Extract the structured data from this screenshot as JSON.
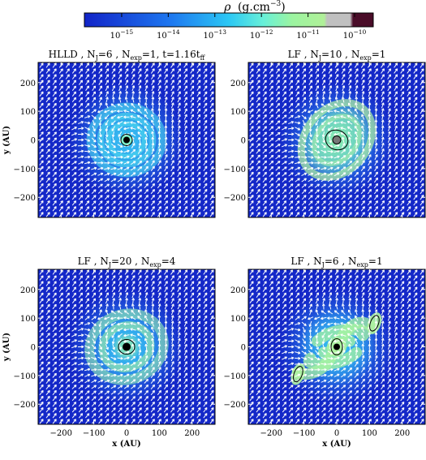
{
  "colorbar": {
    "label_symbol": "ρ",
    "label_units": "(g.cm",
    "label_exp": "−3",
    "label_close": ")",
    "tick_exponents": [
      "−15",
      "−14",
      "−13",
      "−12",
      "−11",
      "−10"
    ],
    "tick_base": "10",
    "log_range": [
      -15.8,
      -9.6
    ],
    "stops": [
      {
        "v": 0.0,
        "c": "#1224c8"
      },
      {
        "v": 0.3,
        "c": "#1e78f0"
      },
      {
        "v": 0.5,
        "c": "#2cc8f4"
      },
      {
        "v": 0.62,
        "c": "#68f0d8"
      },
      {
        "v": 0.72,
        "c": "#9cf4a0"
      },
      {
        "v": 0.83,
        "c": "#b0f098"
      },
      {
        "v": 0.84,
        "c": "#c0c0c0"
      },
      {
        "v": 0.92,
        "c": "#c0c0c0"
      },
      {
        "v": 0.93,
        "c": "#4a0c28"
      },
      {
        "v": 1.0,
        "c": "#4a0c28"
      }
    ]
  },
  "panels": [
    {
      "id": "hlld",
      "title_parts": [
        {
          "t": "HLLD , N"
        },
        {
          "t": "J",
          "sub": true
        },
        {
          "t": "=6 , N"
        },
        {
          "t": "exp",
          "sub": true
        },
        {
          "t": "=1, t=1.16t"
        },
        {
          "t": "ff",
          "sub": true
        }
      ]
    },
    {
      "id": "lf10",
      "title_parts": [
        {
          "t": "LF , N"
        },
        {
          "t": "J",
          "sub": true
        },
        {
          "t": "=10 , N"
        },
        {
          "t": "exp",
          "sub": true
        },
        {
          "t": "=1"
        }
      ]
    },
    {
      "id": "lf20",
      "title_parts": [
        {
          "t": "LF , N"
        },
        {
          "t": "J",
          "sub": true
        },
        {
          "t": "=20 , N"
        },
        {
          "t": "exp",
          "sub": true
        },
        {
          "t": "=4"
        }
      ]
    },
    {
      "id": "lf6",
      "title_parts": [
        {
          "t": "LF , N"
        },
        {
          "t": "J",
          "sub": true
        },
        {
          "t": "=6 , N"
        },
        {
          "t": "exp",
          "sub": true
        },
        {
          "t": "=1"
        }
      ]
    }
  ],
  "axes": {
    "xlabel": "x (AU)",
    "ylabel": "y (AU)",
    "x_ticks": [
      "−200",
      "−100",
      "0",
      "100",
      "200"
    ],
    "y_ticks": [
      "200",
      "100",
      "0",
      "−100",
      "−200"
    ],
    "tick_values": [
      -200,
      -100,
      0,
      100,
      200
    ],
    "range": [
      -270,
      270
    ]
  },
  "colors": {
    "background": "#1428c8",
    "arrow": "#ffffff",
    "contour": "#000000"
  },
  "chart_data": {
    "type": "heatmap",
    "quantity": "ρ (g.cm−3)",
    "xlabel": "x (AU)",
    "ylabel": "y (AU)",
    "xlim": [
      -270,
      270
    ],
    "ylim": [
      -270,
      270
    ],
    "color_scale": "log",
    "colorbar_ticks": [
      "10−15",
      "10−14",
      "10−13",
      "10−12",
      "10−11",
      "10−10"
    ],
    "panels": [
      "HLLD , NJ=6 , Nexp=1, t=1.16tff",
      "LF , NJ=10 , Nexp=1",
      "LF , NJ=20 , Nexp=4",
      "LF , NJ=6 , Nexp=1"
    ],
    "overlay": "velocity vectors (white arrows), density contours (black)"
  }
}
